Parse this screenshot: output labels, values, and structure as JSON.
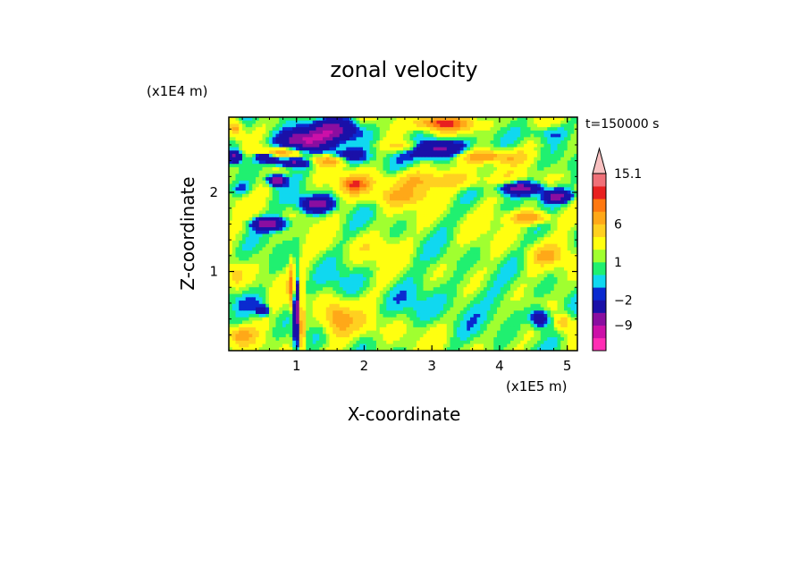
{
  "chart_data": {
    "type": "heatmap",
    "title": "zonal velocity",
    "xlabel": "X-coordinate",
    "ylabel": "Z-coordinate",
    "x_unit": "(x1E5 m)",
    "y_unit": "(x1E4 m)",
    "time_label": "t=150000 s",
    "xlim": [
      0,
      5.15
    ],
    "ylim": [
      0,
      2.95
    ],
    "x_ticks": [
      "1",
      "2",
      "3",
      "4",
      "5"
    ],
    "y_ticks": [
      "1",
      "2"
    ],
    "colorbar": {
      "labels": [
        "15.1",
        "6",
        "1",
        "−2",
        "−9"
      ],
      "label_values": [
        15.1,
        6,
        1,
        -2,
        -9
      ],
      "levels": [
        -15,
        -12,
        -9,
        -6,
        -2,
        -1,
        0,
        1,
        2,
        4,
        6,
        8,
        10,
        13,
        15.1
      ],
      "colors": [
        "#ff2db4",
        "#cc10a8",
        "#8a0ea0",
        "#1a10a8",
        "#0a2ad0",
        "#10d8f0",
        "#20f070",
        "#a0ff30",
        "#ffff10",
        "#ffd020",
        "#ffa818",
        "#ff7810",
        "#e82020",
        "#f07078",
        "#f8c0c0"
      ]
    },
    "features": [
      {
        "x": 1.05,
        "z": 2.65,
        "sx": 0.35,
        "sz": 0.12,
        "v": -10
      },
      {
        "x": 1.55,
        "z": 2.78,
        "sx": 0.45,
        "sz": 0.15,
        "v": -8
      },
      {
        "x": 0.55,
        "z": 2.45,
        "sx": 0.18,
        "sz": 0.06,
        "v": -8
      },
      {
        "x": 0.7,
        "z": 2.5,
        "sx": 0.3,
        "sz": 0.06,
        "v": 6
      },
      {
        "x": 0.95,
        "z": 2.38,
        "sx": 0.3,
        "sz": 0.06,
        "v": -9
      },
      {
        "x": 0.7,
        "z": 2.15,
        "sx": 0.12,
        "sz": 0.06,
        "v": -12
      },
      {
        "x": 0.6,
        "z": 1.6,
        "sx": 0.25,
        "sz": 0.08,
        "v": -10
      },
      {
        "x": 1.3,
        "z": 1.85,
        "sx": 0.25,
        "sz": 0.1,
        "v": -9
      },
      {
        "x": 1.45,
        "z": 2.4,
        "sx": 0.35,
        "sz": 0.07,
        "v": 7
      },
      {
        "x": 1.85,
        "z": 2.1,
        "sx": 0.22,
        "sz": 0.1,
        "v": 7
      },
      {
        "x": 1.75,
        "z": 2.45,
        "sx": 0.3,
        "sz": 0.1,
        "v": -6
      },
      {
        "x": 2.65,
        "z": 2.58,
        "sx": 0.3,
        "sz": 0.08,
        "v": 6
      },
      {
        "x": 3.05,
        "z": 2.55,
        "sx": 0.4,
        "sz": 0.12,
        "v": -11
      },
      {
        "x": 3.05,
        "z": 2.88,
        "sx": 0.3,
        "sz": 0.08,
        "v": 8
      },
      {
        "x": 3.45,
        "z": 2.85,
        "sx": 0.35,
        "sz": 0.1,
        "v": 5
      },
      {
        "x": 3.05,
        "z": 2.15,
        "sx": 0.8,
        "sz": 0.12,
        "v": 4.5
      },
      {
        "x": 2.5,
        "z": 1.95,
        "sx": 0.5,
        "sz": 0.12,
        "v": 4
      },
      {
        "x": 3.85,
        "z": 2.45,
        "sx": 0.5,
        "sz": 0.08,
        "v": 6
      },
      {
        "x": 4.3,
        "z": 2.05,
        "sx": 0.3,
        "sz": 0.08,
        "v": -10
      },
      {
        "x": 4.85,
        "z": 1.95,
        "sx": 0.22,
        "sz": 0.08,
        "v": -9
      },
      {
        "x": 4.45,
        "z": 1.68,
        "sx": 0.3,
        "sz": 0.08,
        "v": 7
      },
      {
        "x": 4.7,
        "z": 2.75,
        "sx": 0.3,
        "sz": 0.1,
        "v": -3
      },
      {
        "x": 0.2,
        "z": 2.05,
        "sx": 0.15,
        "sz": 0.08,
        "v": -3
      },
      {
        "x": 0.1,
        "z": 2.8,
        "sx": 0.1,
        "sz": 0.1,
        "v": 6
      },
      {
        "x": 3.3,
        "z": 0.7,
        "sx": 0.6,
        "sz": 0.35,
        "v": -1.5
      },
      {
        "x": 2.75,
        "z": 0.55,
        "sx": 0.25,
        "sz": 0.2,
        "v": -1
      },
      {
        "x": 4.15,
        "z": 0.5,
        "sx": 0.25,
        "sz": 0.2,
        "v": -1.5
      },
      {
        "x": 3.9,
        "z": 1.0,
        "sx": 0.3,
        "sz": 0.2,
        "v": 0.5
      },
      {
        "x": 0.3,
        "z": 0.6,
        "sx": 0.3,
        "sz": 0.12,
        "v": -1.5
      },
      {
        "x": 0.5,
        "z": 0.5,
        "sx": 0.08,
        "sz": 0.06,
        "v": -8
      },
      {
        "x": 0.1,
        "z": 0.95,
        "sx": 0.12,
        "sz": 0.12,
        "v": 4
      },
      {
        "x": 0.15,
        "z": 0.2,
        "sx": 0.2,
        "sz": 0.1,
        "v": 5
      },
      {
        "x": 1.0,
        "z": 0.5,
        "sx": 0.05,
        "sz": 0.45,
        "v": -9
      },
      {
        "x": 0.93,
        "z": 0.8,
        "sx": 0.04,
        "sz": 0.3,
        "v": 7
      },
      {
        "x": 1.08,
        "z": 0.35,
        "sx": 0.04,
        "sz": 0.35,
        "v": 8
      },
      {
        "x": 1.6,
        "z": 0.4,
        "sx": 0.2,
        "sz": 0.2,
        "v": 6
      },
      {
        "x": 1.7,
        "z": 0.85,
        "sx": 0.3,
        "sz": 0.2,
        "v": -1.5
      },
      {
        "x": 4.6,
        "z": 0.4,
        "sx": 0.15,
        "sz": 0.12,
        "v": -7
      },
      {
        "x": 4.95,
        "z": 0.35,
        "sx": 0.12,
        "sz": 0.1,
        "v": 5
      },
      {
        "x": 4.7,
        "z": 1.2,
        "sx": 0.25,
        "sz": 0.12,
        "v": 4
      },
      {
        "x": 2.1,
        "z": 1.3,
        "sx": 0.35,
        "sz": 0.15,
        "v": 1.5
      },
      {
        "x": 2.05,
        "z": 0.3,
        "sx": 0.3,
        "sz": 0.15,
        "v": 1.5
      },
      {
        "x": 0.1,
        "z": 2.45,
        "sx": 0.1,
        "sz": 0.08,
        "v": -8
      },
      {
        "x": 5.0,
        "z": 2.2,
        "sx": 0.12,
        "sz": 0.1,
        "v": 1
      }
    ]
  }
}
